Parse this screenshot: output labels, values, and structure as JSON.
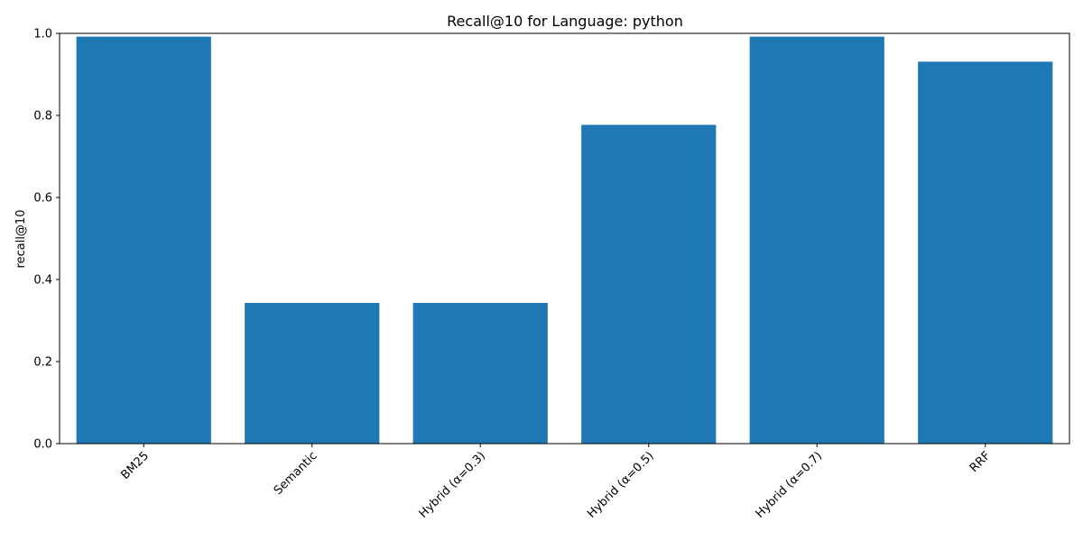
{
  "chart_data": {
    "type": "bar",
    "title": "Recall@10 for Language: python",
    "xlabel": "",
    "ylabel": "recall@10",
    "categories": [
      "BM25",
      "Semantic",
      "Hybrid (α=0.3)",
      "Hybrid (α=0.5)",
      "Hybrid (α=0.7)",
      "RRF"
    ],
    "values": [
      0.992,
      0.343,
      0.343,
      0.777,
      0.992,
      0.931
    ],
    "ylim": [
      0,
      1.0
    ],
    "yticks": [
      "0.0",
      "0.2",
      "0.4",
      "0.6",
      "0.8",
      "1.0"
    ],
    "bar_color": "#1f77b4",
    "grid": false,
    "legend": "none"
  }
}
